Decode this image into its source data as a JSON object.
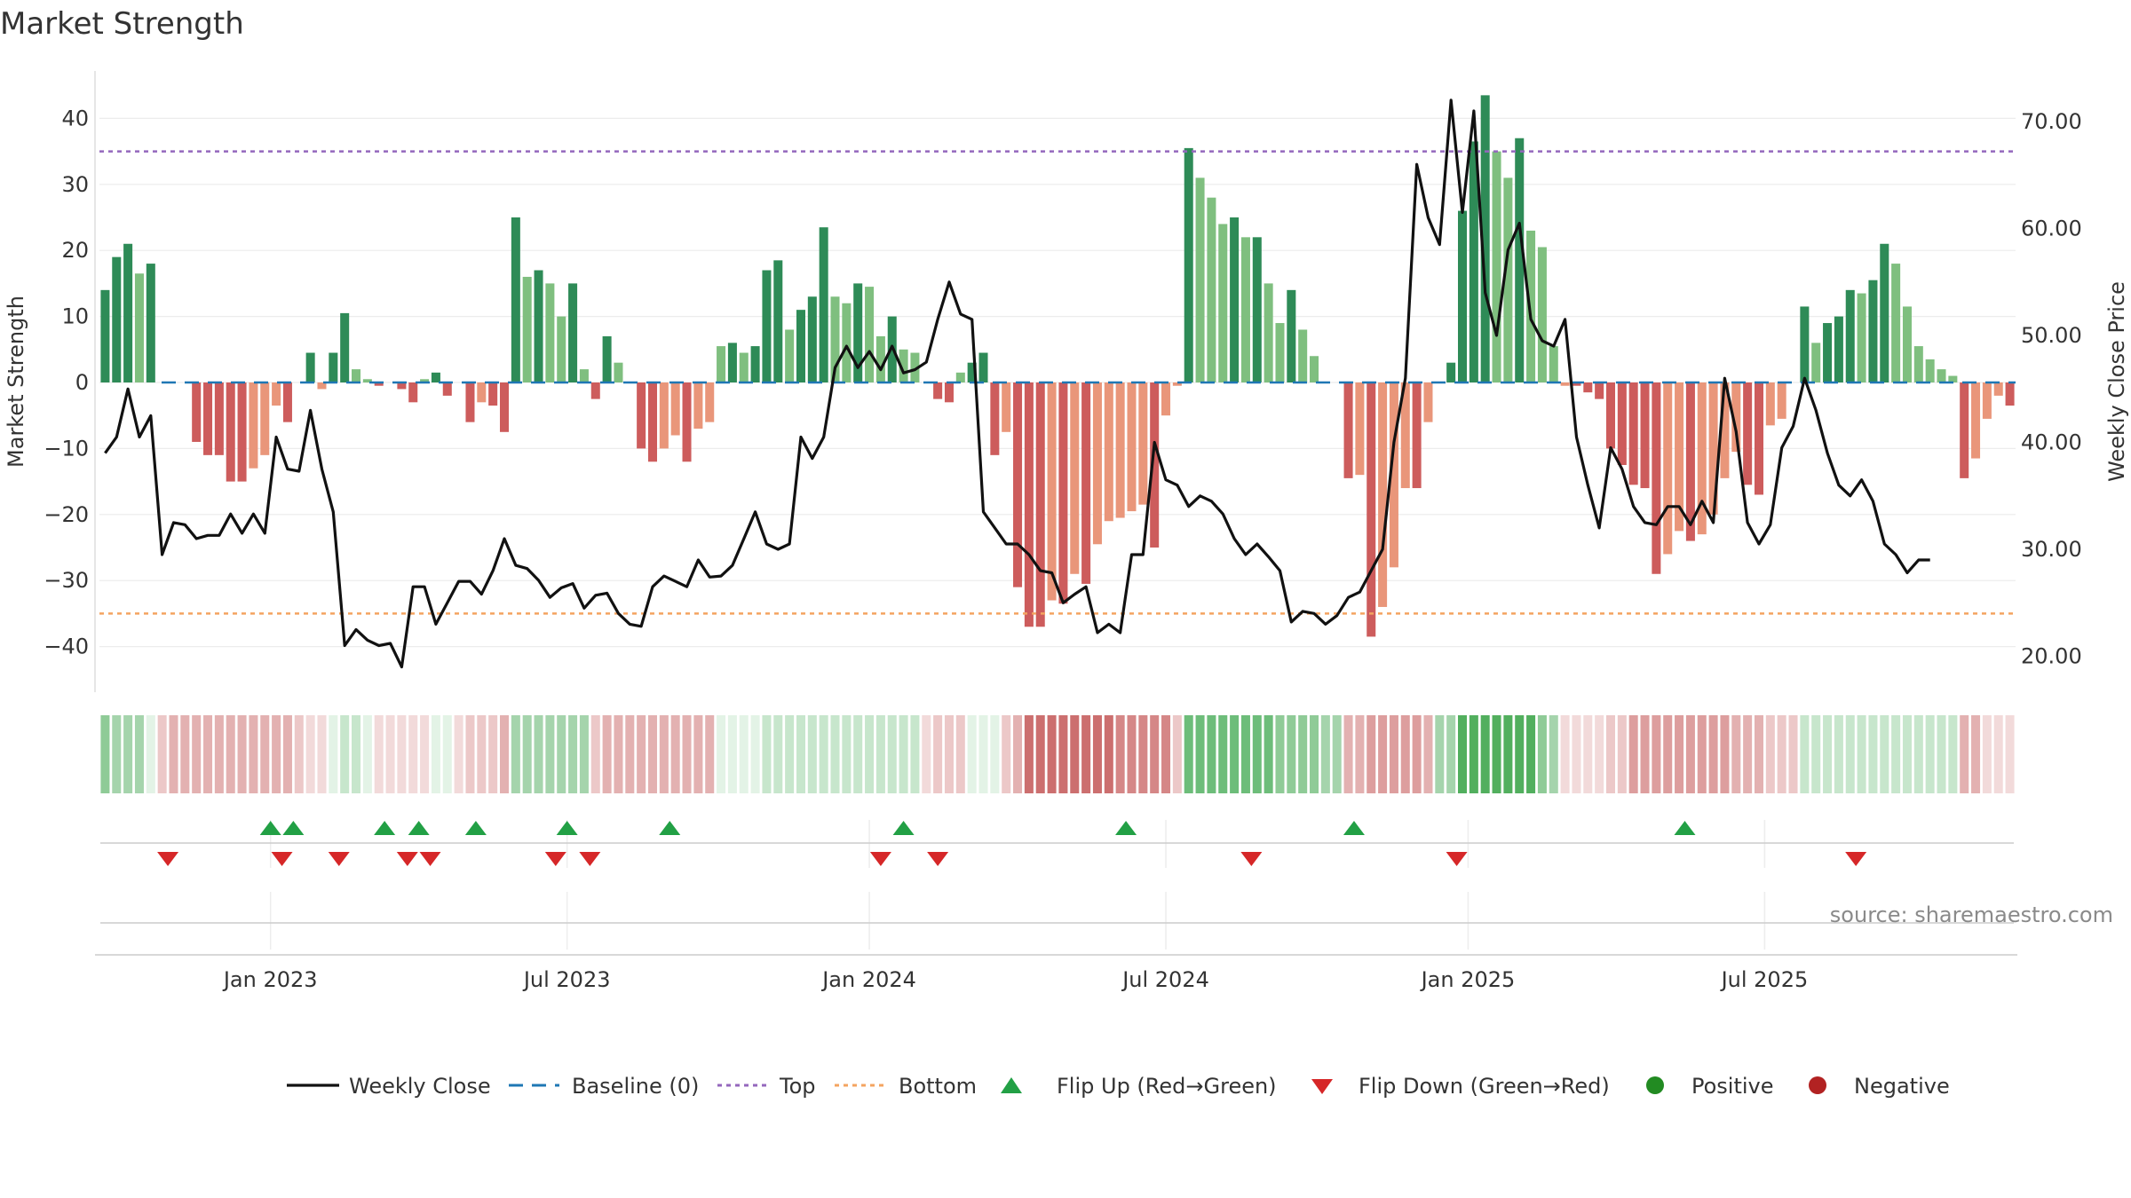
{
  "chart_data": {
    "type": "bar",
    "title": "Market Strength",
    "ylabel_left": "Market Strength",
    "ylabel_right": "Weekly Close Price",
    "ylim_left": [
      -48,
      48
    ],
    "ylim_right": [
      15.0,
      76.0
    ],
    "left_ticks": [
      40,
      30,
      20,
      10,
      0,
      -10,
      -20,
      -30,
      -40
    ],
    "left_tick_labels": [
      "40",
      "30",
      "20",
      "10",
      "0",
      "−10",
      "−20",
      "−30",
      "−40"
    ],
    "right_ticks": [
      70,
      60,
      50,
      40,
      30,
      20
    ],
    "right_tick_labels": [
      "70.00",
      "60.00",
      "50.00",
      "40.00",
      "30.00",
      "20.00"
    ],
    "x_ticks": [
      {
        "label": "Jan 2023",
        "week": 15
      },
      {
        "label": "Jul 2023",
        "week": 41
      },
      {
        "label": "Jan 2024",
        "week": 67.5
      },
      {
        "label": "Jul 2024",
        "week": 93.5
      },
      {
        "label": "Jan 2025",
        "week": 120
      },
      {
        "label": "Jul 2025",
        "week": 146
      }
    ],
    "top_level": 35,
    "bottom_level": -35,
    "source": "source: sharemaestro.com",
    "colors": {
      "pos_dark": "#2e8b57",
      "pos_light": "#7fbf7f",
      "neg_dark": "#cd5c5c",
      "neg_light": "#e9967a",
      "line": "#111111",
      "baseline": "#1f77b4",
      "top": "#9467bd",
      "bottom": "#f4a460",
      "flip_up": "#22a045",
      "flip_down": "#d62728",
      "positive_dot": "#228b22",
      "negative_dot": "#b22222"
    },
    "strength": [
      14,
      19,
      21,
      16.5,
      18,
      0,
      0,
      0,
      -9,
      -11,
      -11,
      -15,
      -15,
      -13,
      -11,
      -3.5,
      -6,
      0,
      4.5,
      -1,
      4.5,
      10.5,
      2,
      0.5,
      -0.5,
      0,
      -1,
      -3,
      0.5,
      1.5,
      -2,
      0,
      -6,
      -3,
      -3.5,
      -7.5,
      25,
      16,
      17,
      15,
      10,
      15,
      2,
      -2.5,
      7,
      3,
      0,
      -10,
      -12,
      -10,
      -8,
      -12,
      -7,
      -6,
      5.5,
      6,
      4.5,
      5.5,
      17,
      18.5,
      8,
      11,
      13,
      23.5,
      13,
      12,
      15,
      14.5,
      7,
      10,
      5,
      4.5,
      0,
      -2.5,
      -3,
      1.5,
      3,
      4.5,
      -11,
      -7.5,
      -31,
      -37,
      -37,
      -33,
      -33.5,
      -29,
      -30.5,
      -24.5,
      -21,
      -20.5,
      -19.5,
      -18.5,
      -25,
      -5,
      -0.5,
      35.5,
      31,
      28,
      24,
      25,
      22,
      22,
      15,
      9,
      14,
      8,
      4,
      0,
      0,
      -14.5,
      -14,
      -38.5,
      -34,
      -28,
      -16,
      -16,
      -6,
      0,
      3,
      26,
      36.5,
      43.5,
      35,
      31,
      37,
      23,
      20.5,
      5.5,
      -0.5,
      -0.5,
      -1.5,
      -2.5,
      -10,
      -12.5,
      -15.5,
      -16,
      -29,
      -26,
      -22.5,
      -24,
      -23,
      -20,
      -14.5,
      -10.5,
      -15.5,
      -17,
      -6.5,
      -5.5,
      0,
      11.5,
      6,
      9,
      10,
      14,
      13.5,
      15.5,
      21,
      18,
      11.5,
      5.5,
      3.5,
      2,
      1,
      -14.5,
      -11.5,
      -5.5,
      -2,
      -3.5
    ],
    "close": [
      39,
      40.5,
      45,
      40.5,
      42.5,
      29.5,
      32.5,
      32.3,
      31,
      31.3,
      31.3,
      33.3,
      31.5,
      33.3,
      31.5,
      40.5,
      37.5,
      37.3,
      43,
      37.5,
      33.5,
      21,
      22.5,
      21.5,
      21,
      21.2,
      19,
      26.5,
      26.5,
      23,
      25,
      27,
      27,
      25.8,
      28,
      31,
      28.5,
      28.2,
      27.1,
      25.5,
      26.4,
      26.8,
      24.5,
      25.7,
      25.9,
      24,
      23,
      22.8,
      26.5,
      27.5,
      27,
      26.5,
      29,
      27.4,
      27.5,
      28.5,
      31,
      33.5,
      30.5,
      30,
      30.5,
      40.5,
      38.5,
      40.5,
      47,
      49,
      47,
      48.5,
      46.8,
      49,
      46.5,
      46.8,
      47.5,
      51.5,
      55,
      52,
      51.5,
      33.5,
      32,
      30.5,
      30.5,
      29.5,
      28,
      27.8,
      25,
      25.8,
      26.5,
      22.2,
      23,
      22.2,
      29.5,
      29.5,
      40,
      36.5,
      36,
      34,
      35,
      34.5,
      33.3,
      31,
      29.5,
      30.5,
      29.3,
      28,
      23.2,
      24.2,
      24,
      23,
      23.8,
      25.5,
      26,
      28,
      30,
      40,
      46,
      66,
      61,
      58.5,
      72,
      61.5,
      71,
      54,
      50,
      58,
      60.5,
      51.5,
      49.5,
      49,
      51.5,
      40.5,
      36,
      32,
      39.5,
      37.5,
      34,
      32.5,
      32.3,
      34,
      34,
      32.3,
      34.5,
      32.5,
      46,
      41,
      32.5,
      30.5,
      32.3,
      39.5,
      41.5,
      46,
      43,
      39,
      36,
      35,
      36.5,
      34.5,
      30.5,
      29.5,
      27.8,
      29,
      29
    ],
    "bands": [
      4,
      3,
      3,
      3,
      1,
      -2,
      -3,
      -3,
      -3,
      -3,
      -3,
      -3,
      -3,
      -3,
      -3,
      -3,
      -3,
      -2,
      -1,
      -1,
      1,
      2,
      2,
      1,
      -1,
      -1,
      -1,
      -1,
      -1,
      1,
      1,
      -1,
      -2,
      -2,
      -2,
      -3,
      3,
      3,
      3,
      3,
      3,
      3,
      3,
      -2,
      -3,
      -3,
      -3,
      -3,
      -3,
      -3,
      -3,
      -3,
      -3,
      -3,
      1,
      1,
      1,
      1,
      2,
      2,
      2,
      2,
      2,
      2,
      2,
      2,
      2,
      2,
      2,
      2,
      2,
      2,
      -1,
      -2,
      -2,
      -2,
      1,
      1,
      1,
      -2,
      -3,
      -6,
      -6,
      -6,
      -6,
      -6,
      -6,
      -6,
      -6,
      -5,
      -5,
      -5,
      -5,
      -5,
      -2,
      5,
      5,
      5,
      5,
      5,
      5,
      5,
      5,
      4,
      4,
      4,
      4,
      3,
      3,
      -3,
      -3,
      -4,
      -4,
      -4,
      -4,
      -4,
      -3,
      3,
      3,
      6,
      6,
      6,
      6,
      6,
      6,
      6,
      4,
      3,
      -1,
      -1,
      -1,
      -1,
      -2,
      -2,
      -4,
      -4,
      -4,
      -4,
      -4,
      -4,
      -4,
      -4,
      -4,
      -3,
      -3,
      -3,
      -2,
      -2,
      -2,
      2,
      2,
      2,
      2,
      2,
      2,
      2,
      2,
      2,
      2,
      2,
      2,
      2,
      2,
      -3,
      -3,
      -1,
      -1,
      -1
    ],
    "flip_up_weeks": [
      15,
      17,
      25,
      28,
      33,
      41,
      50,
      70.5,
      90,
      110,
      139
    ],
    "flip_down_weeks": [
      6,
      16,
      21,
      27,
      29,
      40,
      43,
      68.5,
      73.5,
      101,
      119,
      154
    ],
    "legend": [
      "Weekly Close",
      "Baseline (0)",
      "Top",
      "Bottom",
      "Flip Up (Red→Green)",
      "Flip Down (Green→Red)",
      "Positive",
      "Negative"
    ]
  }
}
